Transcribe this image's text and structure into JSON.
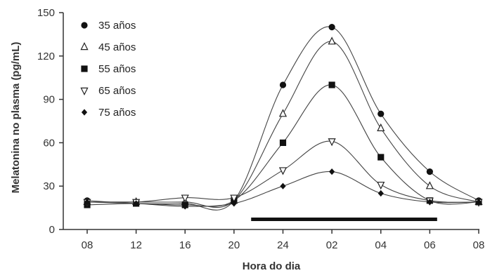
{
  "chart_data": {
    "type": "line",
    "title": "",
    "xlabel": "Hora do dia",
    "ylabel": "Melatonina no plasma (pg/mL)",
    "categories": [
      "08",
      "12",
      "16",
      "20",
      "24",
      "02",
      "04",
      "06",
      "08"
    ],
    "y_ticks": [
      "0",
      "30",
      "60",
      "90",
      "120",
      "150"
    ],
    "ylim": [
      0,
      150
    ],
    "legend_position": "top-left",
    "night_bar": {
      "from_category_index": 3.35,
      "to_category_index": 7.15
    },
    "series": [
      {
        "name": "35 años",
        "marker": "circle-filled",
        "values": [
          20,
          18,
          18,
          20,
          100,
          140,
          80,
          40,
          20
        ]
      },
      {
        "name": "45 años",
        "marker": "triangle-open",
        "values": [
          19,
          19,
          19,
          20,
          80,
          130,
          70,
          30,
          19
        ]
      },
      {
        "name": "55 años",
        "marker": "square-filled",
        "values": [
          17,
          18,
          17,
          20,
          60,
          100,
          50,
          20,
          19
        ]
      },
      {
        "name": "65 años",
        "marker": "triangle-down-open",
        "values": [
          19,
          19,
          22,
          22,
          41,
          61,
          31,
          20,
          19
        ]
      },
      {
        "name": "75 años",
        "marker": "diamond-filled",
        "values": [
          19,
          18,
          16,
          18,
          30,
          40,
          25,
          19,
          19
        ]
      }
    ]
  }
}
